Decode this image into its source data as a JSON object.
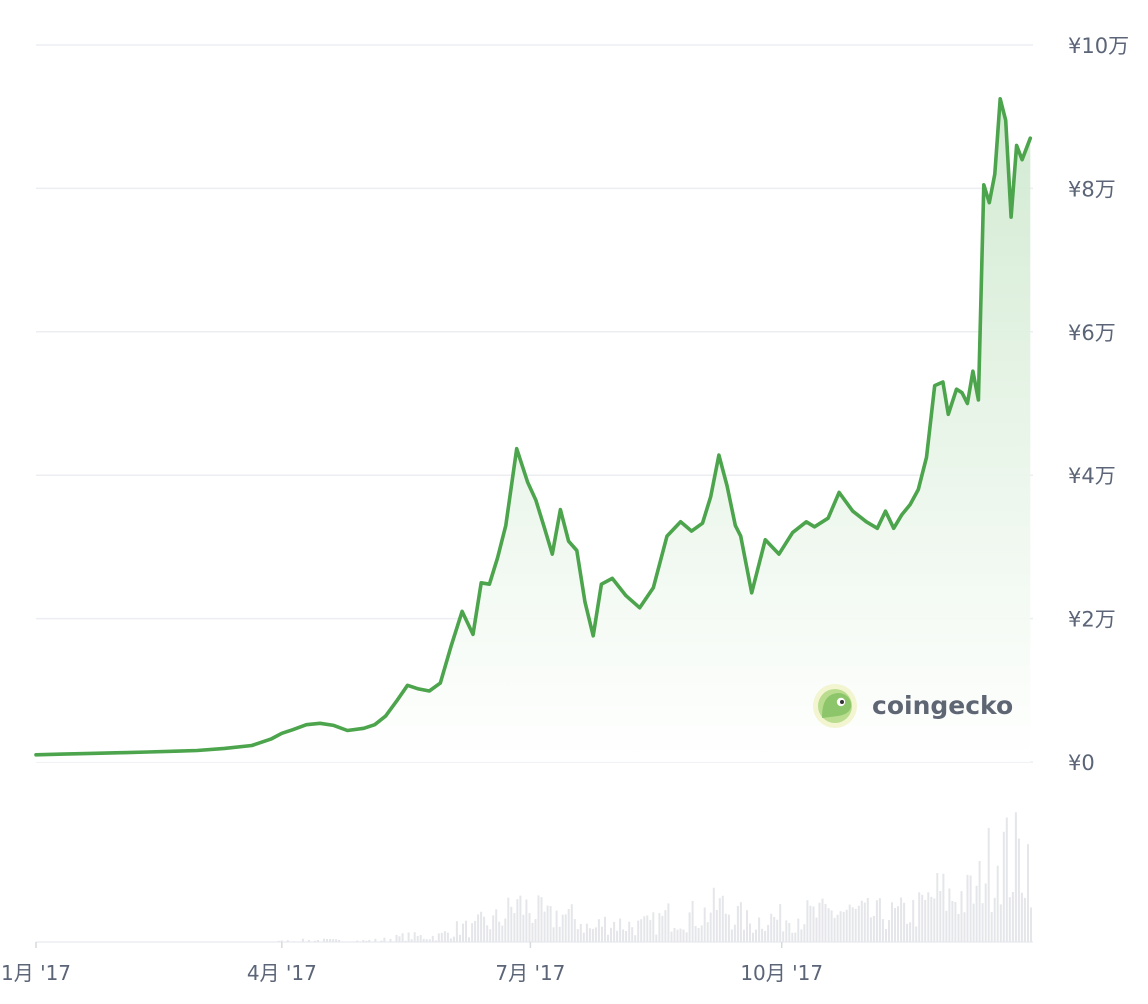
{
  "watermark": {
    "text": "coingecko"
  },
  "colors": {
    "line": "#4ca44c",
    "area_top": "#cfe9cf",
    "volume": "#e4e6ea",
    "grid": "#eceef2",
    "text": "#5b6577"
  },
  "chart_data": {
    "type": "area",
    "ylim": [
      0,
      100000
    ],
    "yticks": [
      {
        "value": 0,
        "label": "¥0"
      },
      {
        "value": 20000,
        "label": "¥2万"
      },
      {
        "value": 40000,
        "label": "¥4万"
      },
      {
        "value": 60000,
        "label": "¥6万"
      },
      {
        "value": 80000,
        "label": "¥8万"
      },
      {
        "value": 100000,
        "label": "¥10万"
      }
    ],
    "xlim": [
      "2017-01-01",
      "2018-01-01"
    ],
    "xticks": [
      {
        "value": "2017-01-01",
        "label": "1月 '17"
      },
      {
        "value": "2017-04-01",
        "label": "4月 '17"
      },
      {
        "value": "2017-07-01",
        "label": "7月 '17"
      },
      {
        "value": "2017-10-01",
        "label": "10月 '17"
      }
    ],
    "grid": true,
    "series": [
      {
        "x": [
          "2017-01-01",
          "2017-01-11",
          "2017-01-21",
          "2017-02-01",
          "2017-02-11",
          "2017-02-21",
          "2017-03-01",
          "2017-03-11",
          "2017-03-21",
          "2017-03-28",
          "2017-04-01",
          "2017-04-05",
          "2017-04-10",
          "2017-04-15",
          "2017-04-20",
          "2017-04-25",
          "2017-05-01",
          "2017-05-05",
          "2017-05-09",
          "2017-05-13",
          "2017-05-17",
          "2017-05-21",
          "2017-05-25",
          "2017-05-29",
          "2017-06-02",
          "2017-06-06",
          "2017-06-10",
          "2017-06-13",
          "2017-06-16",
          "2017-06-19",
          "2017-06-22",
          "2017-06-26",
          "2017-06-30",
          "2017-07-03",
          "2017-07-06",
          "2017-07-09",
          "2017-07-12",
          "2017-07-15",
          "2017-07-18",
          "2017-07-21",
          "2017-07-24",
          "2017-07-27",
          "2017-07-31",
          "2017-08-05",
          "2017-08-10",
          "2017-08-15",
          "2017-08-20",
          "2017-08-25",
          "2017-08-29",
          "2017-09-02",
          "2017-09-05",
          "2017-09-08",
          "2017-09-11",
          "2017-09-14",
          "2017-09-16",
          "2017-09-20",
          "2017-09-25",
          "2017-09-30",
          "2017-10-05",
          "2017-10-10",
          "2017-10-13",
          "2017-10-18",
          "2017-10-22",
          "2017-10-27",
          "2017-11-01",
          "2017-11-05",
          "2017-11-08",
          "2017-11-11",
          "2017-11-14",
          "2017-11-17",
          "2017-11-20",
          "2017-11-23",
          "2017-11-26",
          "2017-11-29",
          "2017-12-01",
          "2017-12-04",
          "2017-12-06",
          "2017-12-08",
          "2017-12-10",
          "2017-12-12",
          "2017-12-14",
          "2017-12-16",
          "2017-12-18",
          "2017-12-20",
          "2017-12-22",
          "2017-12-24",
          "2017-12-26",
          "2017-12-28",
          "2017-12-31"
        ],
        "values": [
          1000,
          1100,
          1200,
          1300,
          1400,
          1500,
          1600,
          1900,
          2300,
          3200,
          4000,
          4500,
          5200,
          5400,
          5100,
          4400,
          4700,
          5200,
          6400,
          8500,
          10700,
          10200,
          9900,
          11000,
          16200,
          21000,
          17800,
          25000,
          24800,
          28500,
          33000,
          43700,
          39000,
          36500,
          32800,
          29000,
          35200,
          30800,
          29500,
          22300,
          17600,
          24800,
          25600,
          23200,
          21500,
          24300,
          31500,
          33500,
          32200,
          33300,
          37000,
          42800,
          38500,
          33000,
          31500,
          23600,
          31000,
          29000,
          32000,
          33500,
          32800,
          34000,
          37600,
          35000,
          33500,
          32600,
          35000,
          32600,
          34500,
          35900,
          38000,
          42500,
          52500,
          53000,
          48500,
          52000,
          51500,
          50000,
          54500,
          50500,
          80500,
          78000,
          82000,
          92500,
          89500,
          76000,
          86000,
          84000,
          87000
        ]
      }
    ],
    "volume": {
      "note_free": null,
      "values": [
        0,
        0,
        0,
        0,
        0,
        0,
        0,
        0,
        0,
        0,
        0,
        0,
        0,
        0,
        0,
        0,
        0,
        0,
        0,
        0,
        0,
        0,
        0,
        0,
        0,
        0,
        0,
        0,
        0,
        0,
        0,
        0,
        0,
        0,
        0,
        0,
        0,
        0,
        0,
        0,
        0,
        0,
        0,
        0,
        0,
        0,
        0,
        0,
        0,
        0,
        0,
        0,
        0,
        0,
        0,
        0,
        0,
        0,
        0,
        0,
        0,
        0,
        0,
        0,
        0,
        0,
        0,
        0,
        0,
        0,
        0,
        0,
        0,
        0,
        0,
        0,
        0,
        0,
        0,
        0,
        0,
        0,
        0,
        0,
        0,
        0,
        0,
        0,
        0,
        0,
        0,
        0,
        0,
        0,
        0,
        0,
        0,
        0,
        0,
        0,
        0,
        0,
        0,
        0,
        0,
        0,
        0,
        0,
        0,
        0,
        0,
        0,
        0,
        0,
        0,
        0,
        0,
        0,
        0,
        0,
        0,
        0,
        0,
        0,
        0,
        0,
        0,
        0,
        0,
        0,
        0,
        0,
        0,
        0,
        0,
        0,
        0,
        0,
        0,
        0,
        0,
        0,
        0,
        0,
        0,
        0,
        0,
        0,
        0,
        0,
        0,
        0,
        0,
        0,
        0,
        0,
        0,
        0,
        0,
        0,
        0,
        0,
        0,
        0,
        0,
        0,
        0,
        0,
        0,
        0,
        0,
        0,
        0,
        0,
        0,
        0,
        0,
        0,
        0,
        0,
        0,
        0,
        0,
        0,
        0,
        0,
        0,
        0,
        0,
        0,
        0,
        0,
        0,
        0,
        0,
        0,
        0,
        0,
        0,
        0,
        0,
        0,
        0,
        0,
        0,
        0,
        0,
        0,
        0,
        0,
        0,
        0,
        0,
        0,
        0,
        0,
        0,
        0,
        0,
        0,
        0,
        0,
        0,
        0,
        0,
        0,
        0,
        0,
        0,
        0,
        0,
        0,
        0,
        0,
        0,
        0,
        0,
        0,
        0,
        0,
        0,
        0,
        0,
        0,
        0,
        0,
        0,
        0,
        0,
        0,
        0,
        0,
        0,
        0,
        0,
        0,
        0,
        0,
        0,
        0,
        0,
        0,
        0,
        0,
        0,
        0,
        0,
        0,
        0,
        0,
        0,
        0,
        0,
        0,
        0,
        0,
        0,
        0,
        0,
        0,
        0,
        0,
        0,
        0,
        0,
        0,
        0,
        0,
        0,
        0,
        0,
        0,
        0,
        0,
        0,
        0,
        0,
        0,
        0,
        0,
        0,
        0,
        0,
        0,
        0,
        0,
        0,
        0,
        0,
        0,
        0,
        0,
        0,
        0,
        0,
        0,
        0,
        0,
        0,
        0,
        0,
        0,
        0,
        0,
        0,
        0,
        0,
        0,
        0,
        0,
        0,
        0,
        0,
        0,
        0,
        0,
        0,
        0,
        0,
        0,
        0,
        0,
        0,
        0,
        0,
        0,
        0,
        0,
        0,
        0,
        0,
        0,
        0,
        0,
        0,
        0,
        0,
        0,
        0,
        0,
        0,
        0,
        0,
        0,
        0,
        0,
        0,
        0,
        0,
        0
      ]
    }
  }
}
